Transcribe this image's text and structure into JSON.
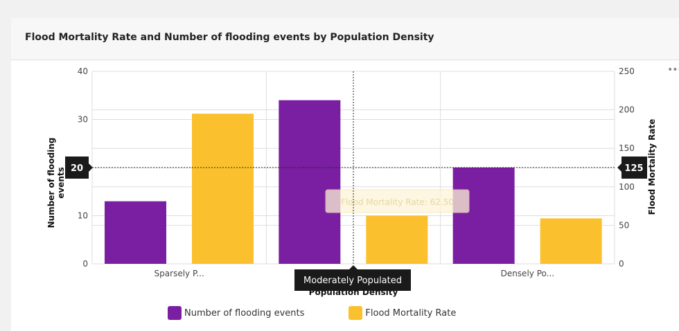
{
  "header": {
    "title": "Flood Mortality Rate and Number of flooding events by Population Density"
  },
  "menu": {
    "more_icon": "more-horizontal-icon",
    "more_label": "•••"
  },
  "colors": {
    "series_1": "#7b1fa2",
    "series_2": "#fbc02d",
    "grid": "#dddddd",
    "tooltip_bg": "#1a1a1a",
    "hover_tooltip_bg": "#fdf3d6"
  },
  "chart_data": {
    "type": "bar",
    "xlabel": "Population Density",
    "ylabel_left": "Number of flooding events",
    "ylabel_right": "Flood Mortality Rate",
    "categories": [
      "Sparsely P...",
      "Moderately Populated",
      "Densely Po..."
    ],
    "series": [
      {
        "name": "Number of flooding events",
        "axis": "left",
        "values": [
          13,
          34,
          20
        ]
      },
      {
        "name": "Flood Mortality Rate",
        "axis": "right",
        "values": [
          195,
          62.5,
          59
        ]
      }
    ],
    "ylim_left": [
      0,
      40
    ],
    "yticks_left": [
      0,
      10,
      20,
      30,
      40
    ],
    "ylim_right": [
      0,
      250
    ],
    "yticks_right": [
      0,
      50,
      100,
      150,
      200,
      250
    ],
    "grid": true,
    "legend_position": "bottom",
    "crosshair": {
      "category": "Moderately Populated",
      "left_value": 20,
      "left_label": "20",
      "right_label": "125",
      "x_label": "Moderately Populated"
    },
    "hover_tooltip": "Flood Mortality Rate: 62.50"
  }
}
